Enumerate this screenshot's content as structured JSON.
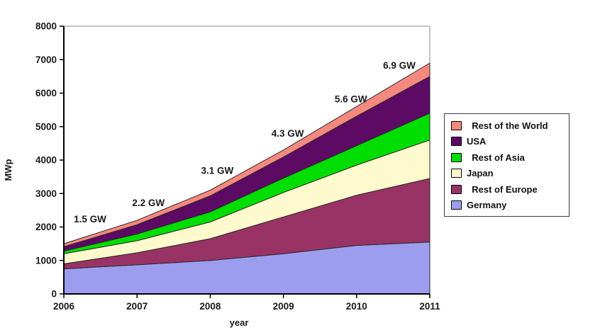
{
  "chart_data": {
    "type": "area",
    "stacked": true,
    "xlabel": "year",
    "ylabel": "MWp",
    "x": [
      2006,
      2007,
      2008,
      2009,
      2010,
      2011
    ],
    "xtick_labels": [
      "2006",
      "2007",
      "2008",
      "2009",
      "2010",
      "2011"
    ],
    "ylim": [
      0,
      8000
    ],
    "ytick_step": 1000,
    "yticks": [
      0,
      1000,
      2000,
      3000,
      4000,
      5000,
      6000,
      7000,
      8000
    ],
    "ytick_labels": [
      "0",
      "1000",
      "2000",
      "3000",
      "4000",
      "5000",
      "6000",
      "7000",
      "8000"
    ],
    "grid": false,
    "series": [
      {
        "name": "Germany",
        "color": "#9d9df0",
        "values": [
          750,
          870,
          1000,
          1200,
          1450,
          1550
        ]
      },
      {
        "name": "Rest of Europe",
        "color": "#993366",
        "values": [
          150,
          360,
          650,
          1100,
          1500,
          1900
        ]
      },
      {
        "name": "Japan",
        "color": "#FFFACD",
        "values": [
          300,
          360,
          500,
          730,
          900,
          1150
        ]
      },
      {
        "name": "Rest of Asia",
        "color": "#00DD00",
        "values": [
          80,
          200,
          300,
          430,
          580,
          800
        ]
      },
      {
        "name": "USA",
        "color": "#5c0a63",
        "values": [
          130,
          280,
          480,
          630,
          880,
          1100
        ]
      },
      {
        "name": "Rest of the World",
        "color": "#F5897F",
        "values": [
          90,
          130,
          170,
          210,
          290,
          400
        ]
      }
    ],
    "annotations": [
      {
        "year": 2006,
        "label": "1.5  GW",
        "total_mw": 1500
      },
      {
        "year": 2007,
        "label": "2.2 GW",
        "total_mw": 2200
      },
      {
        "year": 2008,
        "label": "3.1 GW",
        "total_mw": 3100
      },
      {
        "year": 2009,
        "label": "4.3 GW",
        "total_mw": 4300
      },
      {
        "year": 2010,
        "label": "5.6 GW",
        "total_mw": 5600
      },
      {
        "year": 2011,
        "label": "6.9 GW",
        "total_mw": 6900
      }
    ],
    "legend": {
      "position": "right",
      "items": [
        {
          "label": "  Rest of the World",
          "series": "Rest of the World"
        },
        {
          "label": "USA",
          "series": "USA"
        },
        {
          "label": "  Rest of Asia",
          "series": "Rest of Asia"
        },
        {
          "label": "Japan",
          "series": "Japan"
        },
        {
          "label": "  Rest of Europe",
          "series": "Rest of Europe"
        },
        {
          "label": "Germany",
          "series": "Germany"
        }
      ]
    }
  }
}
